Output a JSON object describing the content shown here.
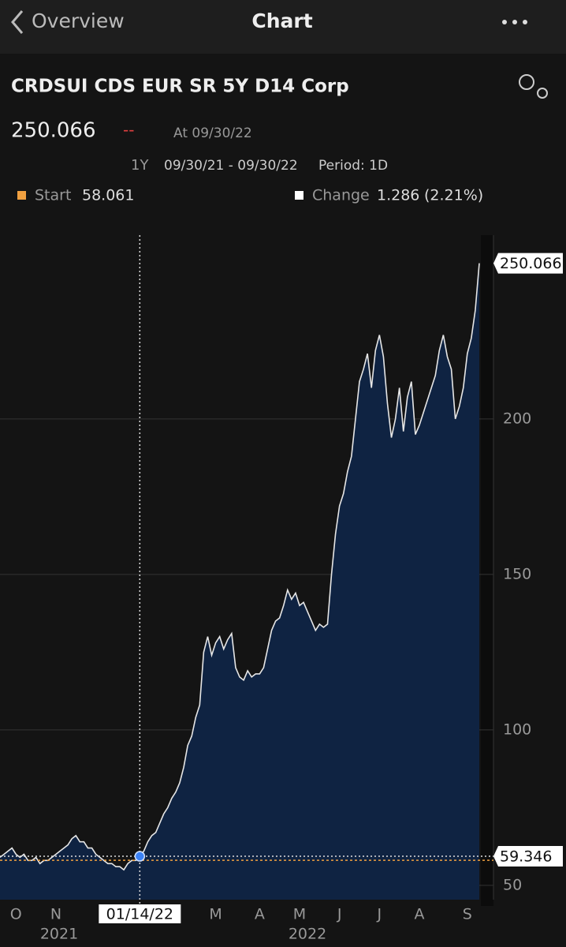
{
  "nav": {
    "back": "Overview",
    "title": "Chart"
  },
  "header": {
    "security": "CRDSUI CDS EUR SR 5Y D14 Corp",
    "change_flag": "--",
    "as_of": "At 09/30/22",
    "range": "1Y",
    "dates": "09/30/21 - 09/30/22",
    "period": "Period: 1D",
    "start_label": "Start",
    "start": 58.061,
    "change_label": "Change",
    "change": "1.286",
    "change_pct": "(2.21%)"
  },
  "chart_data": {
    "type": "area",
    "color": "#e6e6e6",
    "fill": "#0f2342",
    "grid": true,
    "categories": [
      null,
      null,
      null,
      null,
      "O",
      null,
      null,
      null,
      null,
      null,
      null,
      null,
      null,
      null,
      "N",
      null,
      null,
      null,
      null,
      null,
      null,
      null,
      null,
      null,
      null,
      null,
      null,
      null,
      null,
      null,
      null,
      null,
      null,
      null,
      null,
      "01/14/22",
      null,
      null,
      null,
      null,
      null,
      null,
      null,
      null,
      null,
      null,
      null,
      null,
      null,
      null,
      null,
      null,
      null,
      null,
      "M",
      null,
      null,
      null,
      null,
      null,
      null,
      null,
      null,
      null,
      null,
      "A",
      null,
      null,
      null,
      null,
      null,
      null,
      null,
      null,
      null,
      "M",
      null,
      null,
      null,
      null,
      null,
      null,
      null,
      null,
      null,
      "J",
      null,
      null,
      null,
      null,
      null,
      null,
      null,
      null,
      null,
      "J",
      null,
      null,
      null,
      null,
      null,
      null,
      null,
      null,
      null,
      "A",
      null,
      null,
      null,
      null,
      null,
      null,
      null,
      null,
      null,
      null,
      null,
      "S",
      null,
      null,
      null
    ],
    "values": [
      59,
      60,
      61,
      62,
      60,
      59,
      60,
      58,
      58,
      59,
      57,
      58,
      58,
      59,
      60,
      61,
      62,
      63,
      65,
      66,
      64,
      64,
      62,
      62,
      60,
      59,
      58,
      57,
      57,
      56,
      56,
      55,
      57,
      58,
      58,
      59.346,
      61,
      64,
      66,
      67,
      70,
      73,
      75,
      78,
      80,
      83,
      88,
      95,
      98,
      104,
      108,
      125,
      130,
      124,
      128,
      130,
      126,
      129,
      131,
      120,
      117,
      116,
      119,
      117,
      118,
      118,
      120,
      126,
      132,
      135,
      136,
      140,
      145,
      142,
      144,
      140,
      141,
      138,
      135,
      132,
      134,
      133,
      134,
      150,
      163,
      172,
      176,
      183,
      188,
      200,
      212,
      216,
      221,
      210,
      222,
      227,
      220,
      205,
      194,
      200,
      210,
      196,
      207,
      212,
      195,
      198,
      202,
      206,
      210,
      214,
      222,
      227,
      220,
      216,
      200,
      204,
      210,
      221,
      226,
      235,
      250.066
    ],
    "x_groups": [
      "2021",
      "2022"
    ],
    "ylim": [
      45.4,
      259.1
    ],
    "yticks": [
      50,
      100,
      150,
      200
    ]
  }
}
